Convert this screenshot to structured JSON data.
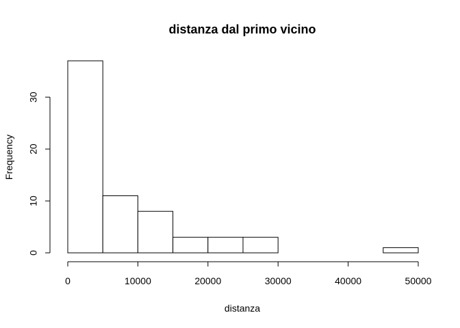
{
  "chart_data": {
    "type": "bar",
    "title": "distanza dal primo vicino",
    "xlabel": "distanza",
    "ylabel": "Frequency",
    "bins": [
      {
        "from": 0,
        "to": 5000,
        "count": 37
      },
      {
        "from": 5000,
        "to": 10000,
        "count": 11
      },
      {
        "from": 10000,
        "to": 15000,
        "count": 8
      },
      {
        "from": 15000,
        "to": 20000,
        "count": 3
      },
      {
        "from": 20000,
        "to": 25000,
        "count": 3
      },
      {
        "from": 25000,
        "to": 30000,
        "count": 3
      },
      {
        "from": 30000,
        "to": 35000,
        "count": 0
      },
      {
        "from": 35000,
        "to": 40000,
        "count": 0
      },
      {
        "from": 40000,
        "to": 45000,
        "count": 0
      },
      {
        "from": 45000,
        "to": 50000,
        "count": 1
      }
    ],
    "x_ticks": [
      "0",
      "10000",
      "20000",
      "30000",
      "40000",
      "50000"
    ],
    "y_ticks": [
      "0",
      "10",
      "20",
      "30"
    ],
    "xlim": [
      0,
      50000
    ],
    "ylim": [
      0,
      37
    ],
    "grid": false,
    "colors": {
      "bar_fill": "#ffffff",
      "bar_stroke": "#000000",
      "axis": "#000000"
    }
  }
}
